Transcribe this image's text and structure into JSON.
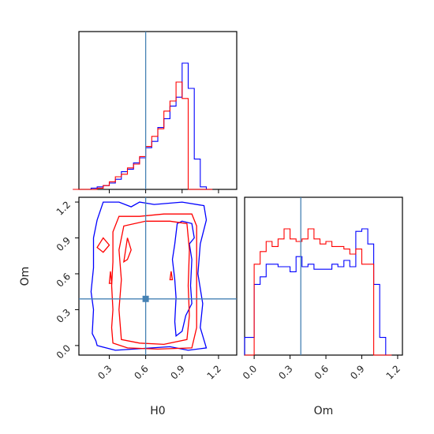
{
  "chart_data": {
    "type": "corner",
    "parameters": [
      "H0",
      "Om"
    ],
    "truth": {
      "H0": 0.6,
      "Om": 0.39
    },
    "colors": {
      "series_a": "#0000ff",
      "series_b": "#ff0000",
      "truth": "#4682b4"
    },
    "ticks": {
      "H0": [
        0.3,
        0.6,
        0.9,
        1.2
      ],
      "Om": [
        0.0,
        0.3,
        0.6,
        0.9,
        1.2
      ]
    },
    "tick_labels": {
      "H0": [
        "0.3",
        "0.6",
        "0.9",
        "1.2"
      ],
      "Om": [
        "0.0",
        "0.3",
        "0.6",
        "0.9",
        "1.2"
      ]
    },
    "xlabels": {
      "H0": "H0",
      "Om": "Om"
    },
    "ylabels": {
      "Om": "Om"
    },
    "ranges": {
      "H0": [
        0.05,
        1.35
      ],
      "Om": [
        -0.08,
        1.24
      ]
    },
    "hist_H0": {
      "bin_edges": [
        0.0,
        0.05,
        0.1,
        0.15,
        0.2,
        0.25,
        0.3,
        0.35,
        0.4,
        0.45,
        0.5,
        0.55,
        0.6,
        0.65,
        0.7,
        0.75,
        0.8,
        0.85,
        0.9,
        0.95,
        1.0,
        1.05,
        1.1,
        1.15
      ],
      "series_a": [
        0,
        0,
        0,
        1,
        2,
        3,
        5,
        8,
        14,
        16,
        21,
        25,
        33,
        38,
        49,
        56,
        66,
        73,
        100,
        80,
        24,
        2,
        0
      ],
      "series_b": [
        0,
        0,
        0,
        0,
        1,
        3,
        6,
        10,
        12,
        17,
        20,
        26,
        34,
        42,
        48,
        62,
        70,
        85,
        72,
        0,
        0,
        0,
        0
      ]
    },
    "hist_Om": {
      "bin_edges": [
        -0.08,
        0.0,
        0.05,
        0.1,
        0.15,
        0.2,
        0.25,
        0.3,
        0.35,
        0.4,
        0.45,
        0.5,
        0.55,
        0.6,
        0.65,
        0.7,
        0.75,
        0.8,
        0.85,
        0.9,
        0.95,
        1.0,
        1.05,
        1.1,
        1.15
      ],
      "series_a": [
        14,
        56,
        62,
        72,
        72,
        70,
        70,
        66,
        78,
        70,
        72,
        68,
        68,
        68,
        72,
        70,
        75,
        70,
        98,
        100,
        88,
        56,
        14,
        0
      ],
      "series_b": [
        0,
        72,
        82,
        90,
        86,
        92,
        100,
        92,
        90,
        92,
        100,
        92,
        88,
        90,
        86,
        86,
        84,
        80,
        84,
        72,
        72,
        0,
        0,
        0
      ]
    },
    "contours_2d": {
      "series_a": [
        [
          [
            0.19,
            0.04
          ],
          [
            0.16,
            0.1
          ],
          [
            0.17,
            0.3
          ],
          [
            0.15,
            0.45
          ],
          [
            0.17,
            0.65
          ],
          [
            0.17,
            0.9
          ],
          [
            0.2,
            1.05
          ],
          [
            0.25,
            1.2
          ],
          [
            0.38,
            1.2
          ],
          [
            0.48,
            1.16
          ],
          [
            0.55,
            1.2
          ],
          [
            0.67,
            1.18
          ],
          [
            0.9,
            1.2
          ],
          [
            1.08,
            1.17
          ],
          [
            1.1,
            1.05
          ],
          [
            1.05,
            0.85
          ],
          [
            1.03,
            0.6
          ],
          [
            1.07,
            0.35
          ],
          [
            1.05,
            0.15
          ],
          [
            1.1,
            -0.02
          ],
          [
            0.95,
            -0.04
          ],
          [
            0.8,
            -0.01
          ],
          [
            0.5,
            -0.03
          ],
          [
            0.35,
            -0.04
          ],
          [
            0.2,
            0.0
          ],
          [
            0.19,
            0.04
          ]
        ],
        [
          [
            0.82,
            0.72
          ],
          [
            0.84,
            0.85
          ],
          [
            0.86,
            1.02
          ],
          [
            0.9,
            1.04
          ],
          [
            0.98,
            1.02
          ],
          [
            1.0,
            0.9
          ],
          [
            0.96,
            0.85
          ],
          [
            0.98,
            0.72
          ],
          [
            0.97,
            0.5
          ],
          [
            0.98,
            0.35
          ],
          [
            0.93,
            0.25
          ],
          [
            0.9,
            0.12
          ],
          [
            0.85,
            0.08
          ],
          [
            0.84,
            0.2
          ],
          [
            0.85,
            0.4
          ],
          [
            0.84,
            0.55
          ],
          [
            0.82,
            0.72
          ]
        ]
      ],
      "series_b": [
        [
          [
            0.33,
            0.02
          ],
          [
            0.32,
            0.15
          ],
          [
            0.33,
            0.3
          ],
          [
            0.32,
            0.5
          ],
          [
            0.33,
            0.7
          ],
          [
            0.33,
            0.95
          ],
          [
            0.38,
            1.08
          ],
          [
            0.55,
            1.08
          ],
          [
            0.75,
            1.1
          ],
          [
            0.98,
            1.1
          ],
          [
            1.02,
            1.0
          ],
          [
            1.02,
            0.7
          ],
          [
            1.02,
            0.4
          ],
          [
            1.02,
            0.15
          ],
          [
            0.98,
            -0.02
          ],
          [
            0.7,
            -0.03
          ],
          [
            0.45,
            -0.02
          ],
          [
            0.33,
            0.02
          ]
        ],
        [
          [
            0.4,
            0.05
          ],
          [
            0.38,
            0.3
          ],
          [
            0.4,
            0.55
          ],
          [
            0.38,
            0.8
          ],
          [
            0.42,
            1.0
          ],
          [
            0.6,
            1.04
          ],
          [
            0.8,
            1.04
          ],
          [
            0.94,
            1.02
          ],
          [
            0.96,
            0.8
          ],
          [
            0.95,
            0.5
          ],
          [
            0.96,
            0.25
          ],
          [
            0.94,
            0.05
          ],
          [
            0.75,
            0.01
          ],
          [
            0.55,
            0.02
          ],
          [
            0.4,
            0.05
          ]
        ],
        [
          [
            0.42,
            0.7
          ],
          [
            0.45,
            0.9
          ],
          [
            0.48,
            0.8
          ],
          [
            0.45,
            0.72
          ],
          [
            0.42,
            0.7
          ]
        ],
        [
          [
            0.8,
            0.55
          ],
          [
            0.81,
            0.62
          ],
          [
            0.82,
            0.55
          ],
          [
            0.8,
            0.55
          ]
        ],
        [
          [
            0.2,
            0.82
          ],
          [
            0.25,
            0.9
          ],
          [
            0.3,
            0.84
          ],
          [
            0.25,
            0.78
          ],
          [
            0.2,
            0.82
          ]
        ],
        [
          [
            0.3,
            0.52
          ],
          [
            0.31,
            0.62
          ],
          [
            0.32,
            0.52
          ],
          [
            0.3,
            0.52
          ]
        ]
      ]
    }
  }
}
